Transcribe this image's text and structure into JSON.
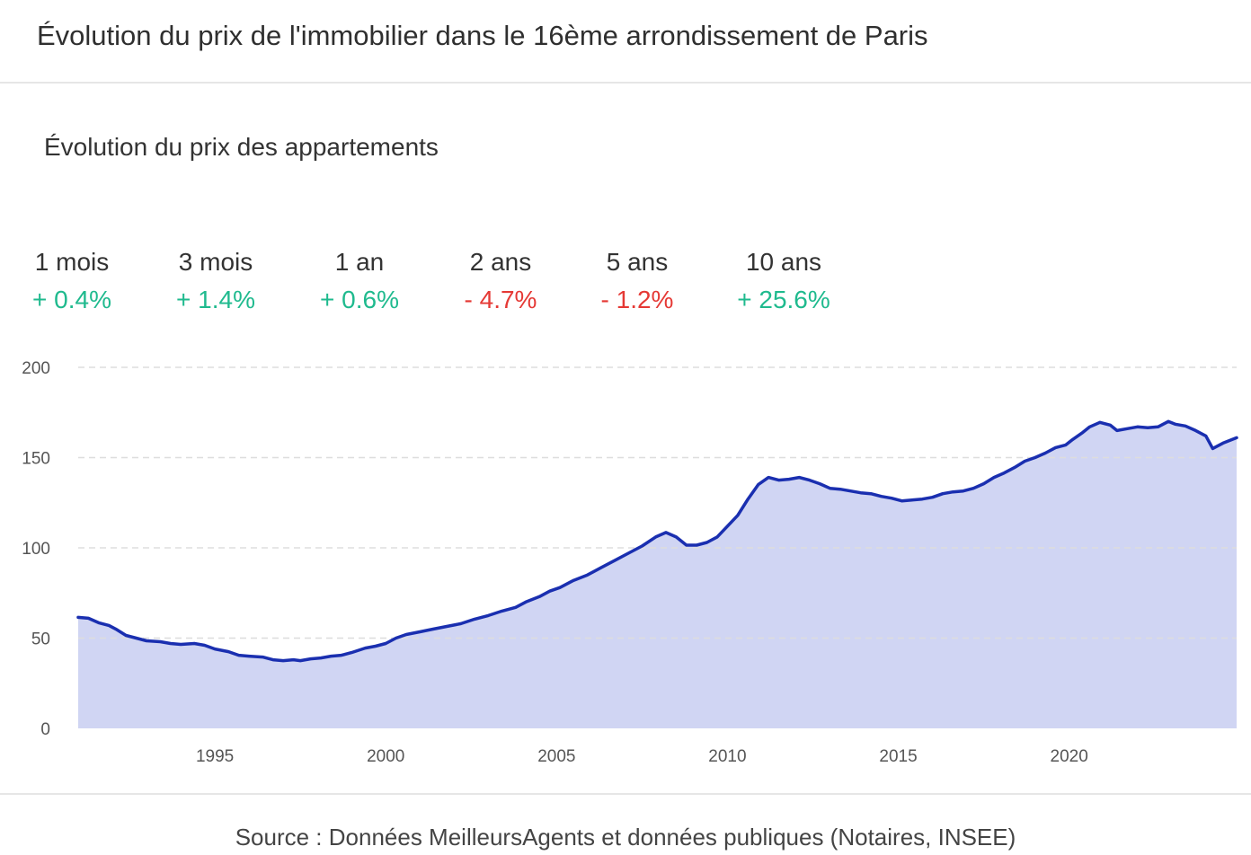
{
  "header": {
    "title": "Évolution du prix de l'immobilier dans le 16ème arrondissement de Paris"
  },
  "chart_title": "Évolution du prix des appartements",
  "stats": [
    {
      "label": "1 mois",
      "value": "+ 0.4%",
      "trend": "up"
    },
    {
      "label": "3 mois",
      "value": "+ 1.4%",
      "trend": "up"
    },
    {
      "label": "1 an",
      "value": "+ 0.6%",
      "trend": "up"
    },
    {
      "label": "2 ans",
      "value": "- 4.7%",
      "trend": "down"
    },
    {
      "label": "5 ans",
      "value": "- 1.2%",
      "trend": "down"
    },
    {
      "label": "10 ans",
      "value": "+ 25.6%",
      "trend": "up"
    }
  ],
  "colors": {
    "positive": "#1fba8e",
    "negative": "#e53935",
    "line": "#1a2fb0",
    "area": "#d0d5f3",
    "grid": "#dddddd",
    "axis_text": "#555555"
  },
  "chart_data": {
    "type": "area",
    "title": "Évolution du prix des appartements",
    "xlabel": "",
    "ylabel": "",
    "xlim": [
      1991,
      2024.9
    ],
    "ylim": [
      0,
      200
    ],
    "yticks": [
      0,
      50,
      100,
      150,
      200
    ],
    "xticks": [
      1995,
      2000,
      2005,
      2010,
      2015,
      2020
    ],
    "grid": "horizontal dashed",
    "legend": "none",
    "series": [
      {
        "x": [
          1991,
          1991.3,
          1991.6,
          1991.9,
          1992.1,
          1992.4,
          1992.7,
          1993.0,
          1993.4,
          1993.7,
          1994.0,
          1994.4,
          1994.7,
          1995.0,
          1995.4,
          1995.7,
          1996.0,
          1996.4,
          1996.7,
          1997.0,
          1997.3,
          1997.5,
          1997.8,
          1998.1,
          1998.4,
          1998.7,
          1999.0,
          1999.4,
          1999.7,
          2000.0,
          2000.3,
          2000.6,
          2001.0,
          2001.4,
          2001.8,
          2002.2,
          2002.6,
          2003.0,
          2003.4,
          2003.8,
          2004.1,
          2004.5,
          2004.8,
          2005.1,
          2005.5,
          2005.9,
          2006.3,
          2006.7,
          2007.1,
          2007.5,
          2007.9,
          2008.2,
          2008.5,
          2008.8,
          2009.1,
          2009.4,
          2009.7,
          2010.0,
          2010.3,
          2010.6,
          2010.9,
          2011.2,
          2011.5,
          2011.8,
          2012.1,
          2012.4,
          2012.7,
          2013.0,
          2013.3,
          2013.6,
          2013.9,
          2014.2,
          2014.5,
          2014.8,
          2015.1,
          2015.4,
          2015.7,
          2016.0,
          2016.3,
          2016.6,
          2016.9,
          2017.2,
          2017.5,
          2017.8,
          2018.1,
          2018.4,
          2018.7,
          2019.0,
          2019.3,
          2019.6,
          2019.9,
          2020.1,
          2020.4,
          2020.6,
          2020.9,
          2021.2,
          2021.4,
          2021.7,
          2022.0,
          2022.3,
          2022.6,
          2022.9,
          2023.1,
          2023.4,
          2023.7,
          2024.0,
          2024.2,
          2024.5,
          2024.9
        ],
        "values": [
          61.5,
          61,
          58.5,
          57,
          55,
          51.5,
          50,
          48.5,
          48,
          47,
          46.5,
          47,
          46,
          44,
          42.5,
          40.5,
          40,
          39.5,
          38,
          37.5,
          38,
          37.5,
          38.5,
          39,
          40,
          40.5,
          42,
          44.5,
          45.5,
          47,
          50,
          52,
          53.5,
          55,
          56.5,
          58,
          60.5,
          62.5,
          65,
          67,
          70,
          73,
          76,
          78,
          82,
          85,
          89,
          93,
          97,
          101,
          106,
          108.5,
          106,
          101.5,
          101.5,
          103,
          106,
          112,
          118,
          127,
          135,
          139,
          137.5,
          138,
          139,
          137.5,
          135.5,
          133,
          132.5,
          131.5,
          130.5,
          130,
          128.5,
          127.5,
          126,
          126.5,
          127,
          128,
          130,
          131,
          131.5,
          133,
          135.5,
          139,
          141.5,
          144.5,
          148,
          150,
          152.5,
          155.5,
          157,
          160,
          164,
          167,
          169.5,
          168,
          165,
          166,
          167,
          166.5,
          167,
          170,
          168.5,
          167.5,
          165,
          162,
          155,
          158,
          161
        ]
      }
    ]
  },
  "footer": {
    "source": "Source : Données MeilleursAgents et données publiques (Notaires, INSEE)"
  }
}
